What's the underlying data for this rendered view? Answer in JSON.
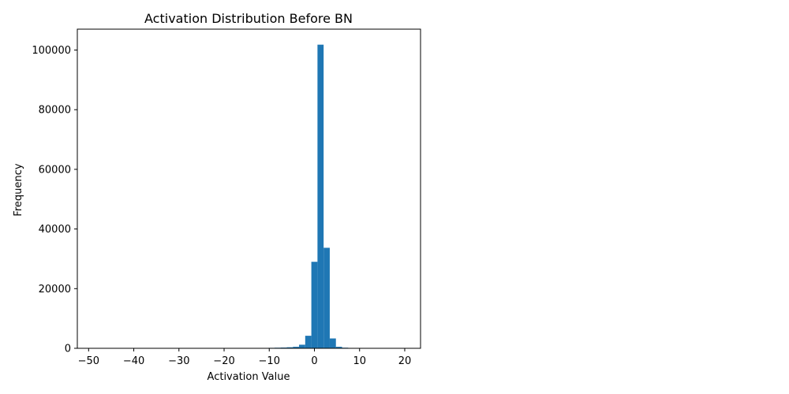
{
  "chart_data": {
    "type": "bar",
    "title": "Activation Distribution Before BN",
    "xlabel": "Activation Value",
    "ylabel": "Frequency",
    "xlim": [
      -52.5,
      23.5
    ],
    "ylim": [
      0,
      107000
    ],
    "xticks": [
      -50,
      -40,
      -30,
      -20,
      -10,
      0,
      10,
      20
    ],
    "yticks": [
      0,
      20000,
      40000,
      60000,
      80000,
      100000
    ],
    "xtick_labels": [
      "−50",
      "−40",
      "−30",
      "−20",
      "−10",
      "0",
      "10",
      "20"
    ],
    "ytick_labels": [
      "0",
      "20000",
      "40000",
      "60000",
      "80000",
      "100000"
    ],
    "grid": false,
    "bin_width": 1.36,
    "bins": [
      {
        "x0": -10.2,
        "value": 150
      },
      {
        "x0": -8.84,
        "value": 200
      },
      {
        "x0": -7.48,
        "value": 250
      },
      {
        "x0": -6.12,
        "value": 350
      },
      {
        "x0": -4.76,
        "value": 500
      },
      {
        "x0": -3.4,
        "value": 1200
      },
      {
        "x0": -2.04,
        "value": 4200
      },
      {
        "x0": -0.68,
        "value": 29000
      },
      {
        "x0": 0.68,
        "value": 101800
      },
      {
        "x0": 2.04,
        "value": 33700
      },
      {
        "x0": 3.4,
        "value": 3300
      },
      {
        "x0": 4.76,
        "value": 500
      },
      {
        "x0": 6.12,
        "value": 200
      }
    ],
    "color": "#1f77b4"
  }
}
